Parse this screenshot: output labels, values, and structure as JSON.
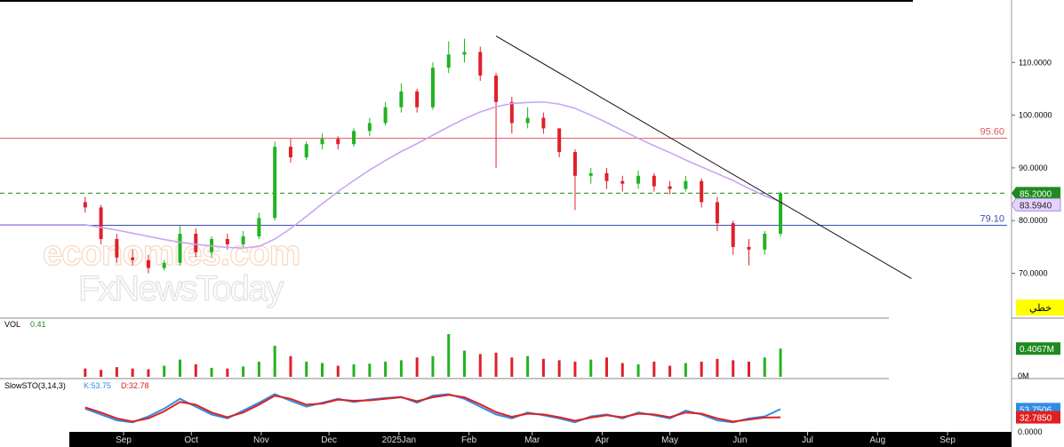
{
  "chart_data": [
    {
      "type": "candlestick",
      "panel": "price",
      "x": [
        "2024-08-15",
        "2024-08-22",
        "2024-08-29",
        "2024-09-05",
        "2024-09-12",
        "2024-09-19",
        "2024-09-26",
        "2024-10-03",
        "2024-10-10",
        "2024-10-17",
        "2024-10-24",
        "2024-10-31",
        "2024-11-07",
        "2024-11-14",
        "2024-11-21",
        "2024-11-28",
        "2024-12-05",
        "2024-12-12",
        "2024-12-19",
        "2024-12-26",
        "2025-01-02",
        "2025-01-09",
        "2025-01-16",
        "2025-01-23",
        "2025-01-30",
        "2025-02-06",
        "2025-02-13",
        "2025-02-20",
        "2025-02-27",
        "2025-03-06",
        "2025-03-13",
        "2025-03-20",
        "2025-03-27",
        "2025-04-03",
        "2025-04-10",
        "2025-04-17",
        "2025-04-24",
        "2025-05-01",
        "2025-05-08",
        "2025-05-15",
        "2025-05-22",
        "2025-05-29",
        "2025-06-05",
        "2025-06-12",
        "2025-06-19"
      ],
      "open": [
        83.5,
        82.5,
        76.5,
        73.0,
        72.5,
        71.0,
        72.0,
        77.5,
        74.0,
        76.5,
        75.5,
        77.0,
        80.5,
        94.0,
        92.0,
        94.5,
        95.5,
        94.5,
        97.0,
        98.5,
        101.5,
        104.5,
        101.5,
        109.0,
        111.5,
        112.0,
        107.5,
        102.5,
        98.5,
        99.5,
        97.5,
        93.0,
        88.5,
        89.0,
        87.5,
        87.0,
        88.5,
        86.5,
        86.0,
        87.5,
        83.5,
        79.5,
        75.0,
        74.5,
        77.5
      ],
      "close": [
        82.5,
        76.5,
        73.0,
        72.5,
        71.0,
        72.0,
        77.5,
        74.0,
        76.5,
        75.5,
        77.0,
        80.5,
        94.0,
        92.0,
        94.5,
        95.5,
        94.5,
        97.0,
        98.5,
        101.5,
        104.5,
        101.5,
        109.0,
        111.5,
        112.0,
        107.5,
        102.5,
        98.5,
        99.5,
        97.5,
        93.0,
        88.5,
        89.0,
        87.5,
        87.0,
        88.5,
        86.5,
        86.0,
        87.5,
        83.5,
        79.5,
        75.0,
        74.5,
        77.5,
        85.2
      ],
      "high": [
        84.5,
        83.0,
        77.5,
        74.5,
        73.5,
        72.5,
        79.0,
        78.5,
        77.0,
        77.5,
        78.0,
        81.5,
        95.0,
        95.5,
        95.0,
        96.5,
        96.0,
        97.5,
        99.5,
        102.5,
        106.0,
        105.0,
        110.0,
        114.0,
        114.5,
        113.0,
        108.0,
        103.5,
        101.5,
        100.5,
        97.5,
        93.5,
        90.0,
        90.0,
        88.5,
        89.5,
        89.0,
        87.5,
        88.5,
        88.0,
        84.5,
        80.0,
        76.5,
        78.0,
        85.5
      ],
      "low": [
        81.5,
        75.5,
        72.0,
        71.5,
        70.0,
        70.5,
        71.5,
        73.0,
        73.0,
        74.5,
        75.0,
        76.5,
        80.0,
        91.0,
        91.5,
        93.5,
        93.5,
        94.0,
        96.0,
        98.0,
        100.5,
        100.5,
        101.0,
        108.0,
        110.0,
        106.5,
        90.0,
        96.5,
        97.5,
        96.5,
        92.0,
        82.0,
        87.0,
        86.0,
        85.5,
        86.0,
        85.5,
        85.0,
        85.5,
        82.5,
        78.0,
        73.5,
        71.5,
        73.5,
        77.0
      ],
      "moving_average": [
        79.2,
        78.7,
        78.2,
        77.6,
        77.0,
        76.4,
        75.9,
        75.5,
        75.2,
        74.9,
        74.8,
        75.1,
        76.5,
        78.5,
        80.8,
        83.2,
        85.5,
        87.6,
        89.6,
        91.4,
        93.1,
        94.6,
        96.2,
        97.8,
        99.3,
        100.6,
        101.6,
        102.2,
        102.4,
        102.5,
        102.1,
        101.3,
        100.0,
        98.6,
        97.1,
        95.6,
        94.2,
        92.9,
        91.5,
        90.2,
        88.9,
        87.6,
        86.1,
        84.7,
        83.6
      ],
      "y_ticks": [
        "110.0000",
        "100.0000",
        "90.0000",
        "80.0000",
        "70.0000"
      ],
      "y_tick_values": [
        110,
        100,
        90,
        80,
        70
      ],
      "ylim": [
        62,
        121
      ],
      "horizontal_lines": [
        {
          "label": "95.60",
          "value": 95.6,
          "color": "#e05a5a"
        },
        {
          "label": "79.10",
          "value": 79.1,
          "color": "#3a4fb0"
        },
        {
          "value": 85.2,
          "color": "#1f8a1f",
          "style": "dashed"
        }
      ],
      "trendline": {
        "start": {
          "x": "2025-02-13",
          "y": 115.0
        },
        "end": {
          "x": "2025-08-16",
          "y": 69.0
        },
        "color": "#111111"
      },
      "last_price_label": "85.2000",
      "ma_value_label": "83.5940",
      "price_tag_label": "خطي"
    },
    {
      "type": "bar",
      "panel": "volume",
      "title": "VOL",
      "title_value": "0.41",
      "values": [
        0.12,
        0.1,
        0.14,
        0.12,
        0.11,
        0.16,
        0.25,
        0.18,
        0.13,
        0.12,
        0.15,
        0.22,
        0.45,
        0.3,
        0.22,
        0.2,
        0.16,
        0.18,
        0.19,
        0.22,
        0.24,
        0.28,
        0.3,
        0.62,
        0.38,
        0.33,
        0.35,
        0.28,
        0.3,
        0.26,
        0.24,
        0.22,
        0.25,
        0.28,
        0.2,
        0.18,
        0.22,
        0.16,
        0.2,
        0.22,
        0.26,
        0.24,
        0.22,
        0.28,
        0.41
      ],
      "up": [
        false,
        false,
        false,
        false,
        false,
        true,
        true,
        false,
        true,
        false,
        true,
        true,
        true,
        false,
        true,
        true,
        false,
        true,
        true,
        true,
        true,
        false,
        true,
        true,
        true,
        false,
        false,
        false,
        true,
        false,
        false,
        false,
        true,
        false,
        false,
        true,
        false,
        false,
        true,
        false,
        false,
        false,
        false,
        true,
        true
      ],
      "last_value_label": "0.4067M",
      "zero_label": "0M",
      "ylim": [
        0,
        0.8
      ]
    },
    {
      "type": "line",
      "panel": "oscillator",
      "title": "SlowSTO(3,14,3)",
      "series": [
        {
          "name": "K:53.75",
          "color": "#2e8ce6",
          "values": [
            55,
            40,
            25,
            20,
            35,
            55,
            80,
            60,
            40,
            30,
            50,
            70,
            92,
            75,
            60,
            70,
            80,
            72,
            78,
            82,
            85,
            70,
            88,
            92,
            80,
            60,
            40,
            30,
            45,
            38,
            30,
            20,
            35,
            40,
            30,
            45,
            38,
            30,
            50,
            40,
            25,
            20,
            30,
            35,
            53.75
          ]
        },
        {
          "name": "D:32.78",
          "color": "#e02020",
          "values": [
            58,
            45,
            30,
            22,
            30,
            48,
            72,
            65,
            45,
            33,
            45,
            65,
            88,
            80,
            65,
            68,
            78,
            75,
            76,
            80,
            84,
            74,
            84,
            90,
            84,
            66,
            46,
            34,
            42,
            40,
            33,
            24,
            32,
            38,
            33,
            42,
            40,
            33,
            45,
            42,
            30,
            22,
            27,
            32,
            32.785
          ]
        }
      ],
      "last_k_label": "53.7506",
      "last_d_label": "32.7850",
      "y_bottom_label": "0.0000",
      "ylim": [
        0,
        100
      ]
    },
    {
      "type": "time_axis",
      "labels": [
        "Sep",
        "Oct",
        "Nov",
        "Dec",
        "2025Jan",
        "Feb",
        "Mar",
        "Apr",
        "May",
        "Jun",
        "Jul",
        "Aug",
        "Sep"
      ],
      "dates": [
        "2024-09-01",
        "2024-10-01",
        "2024-11-01",
        "2024-12-01",
        "2025-01-01",
        "2025-02-01",
        "2025-03-01",
        "2025-04-01",
        "2025-05-01",
        "2025-06-01",
        "2025-07-01",
        "2025-08-01",
        "2025-09-01"
      ]
    }
  ],
  "watermark": {
    "line1": "economies.com",
    "line2": "FxNewsToday"
  },
  "colors": {
    "up": "#22b322",
    "down": "#e0202a",
    "moving_average": "#c8a6f2",
    "axis_bg": "#ffffff",
    "time_axis_bg": "#000000",
    "last_price_bg": "#1f8a1f",
    "ma_label_bg": "#e4d4fb",
    "price_tag_bg": "#ffff00",
    "k_label_bg": "#2e8ce6",
    "d_label_bg": "#e02020",
    "vol_label_bg": "#1f8a1f"
  }
}
